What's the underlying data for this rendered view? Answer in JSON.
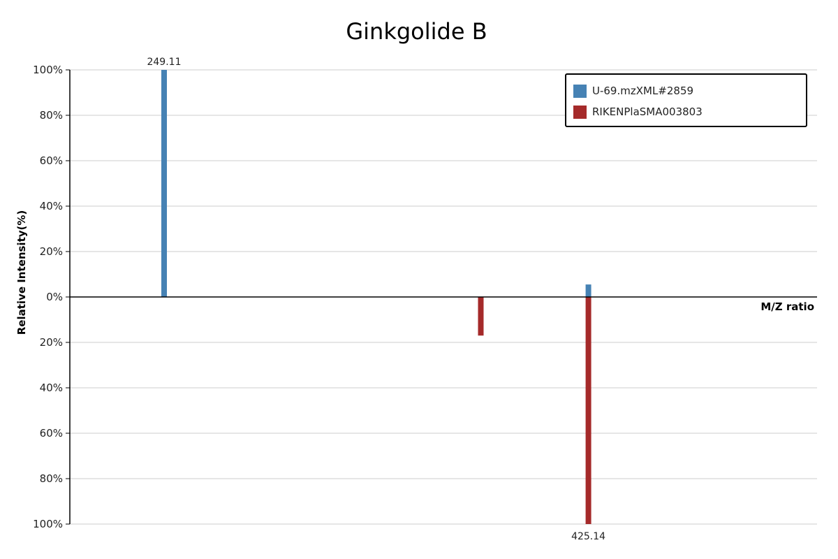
{
  "chart_data": {
    "type": "bar",
    "title": "Ginkgolide B",
    "xlabel": "M/Z ratio",
    "ylabel": "Relative Intensity(%)",
    "ylim_top": [
      0,
      100
    ],
    "ylim_bottom": [
      0,
      100
    ],
    "yticks_top": [
      "0%",
      "20%",
      "40%",
      "60%",
      "80%",
      "100%"
    ],
    "yticks_bottom": [
      "20%",
      "40%",
      "60%",
      "80%",
      "100%"
    ],
    "grid": true,
    "legend_position": "top-right",
    "series": [
      {
        "name": "U-69.mzXML#2859",
        "color": "#4682b4",
        "direction": "up",
        "peaks": [
          {
            "mz": 249.11,
            "intensity": 100,
            "label": "249.11"
          },
          {
            "mz": 425.14,
            "intensity": 5.5,
            "label": ""
          }
        ]
      },
      {
        "name": "RIKENPlaSMA003803",
        "color": "#a52a2a",
        "direction": "down",
        "peaks": [
          {
            "mz": 380.5,
            "intensity": 17,
            "label": ""
          },
          {
            "mz": 425.14,
            "intensity": 100,
            "label": "425.14"
          }
        ]
      }
    ],
    "xlim": [
      210,
      520
    ]
  }
}
